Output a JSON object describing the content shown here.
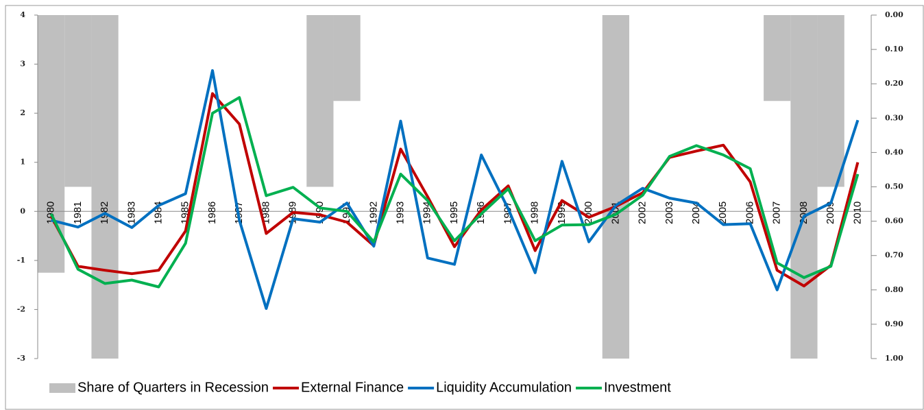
{
  "chart_data": {
    "type": "bar-line",
    "categories": [
      "1980",
      "1981",
      "1982",
      "1983",
      "1984",
      "1985",
      "1986",
      "1987",
      "1988",
      "1989",
      "1990",
      "1991",
      "1992",
      "1993",
      "1994",
      "1995",
      "1996",
      "1997",
      "1998",
      "1999",
      "2000",
      "2001",
      "2002",
      "2003",
      "2004",
      "2005",
      "2006",
      "2007",
      "2008",
      "2009",
      "2010"
    ],
    "series": [
      {
        "name": "Share of Quarters in Recession",
        "type": "bar",
        "axis": "y2",
        "color": "#bfbfbf",
        "values": [
          0.75,
          0.5,
          1.0,
          0,
          0,
          0,
          0,
          0,
          0,
          0,
          0.5,
          0.25,
          0,
          0,
          0,
          0,
          0,
          0,
          0,
          0,
          0,
          1.0,
          0,
          0,
          0,
          0,
          0,
          0.25,
          1.0,
          0.5,
          0
        ]
      },
      {
        "name": "External Finance",
        "type": "line",
        "color": "#c00000",
        "values": [
          -0.1,
          -1.12,
          -1.2,
          -1.27,
          -1.2,
          -0.4,
          2.4,
          1.78,
          -0.45,
          -0.02,
          -0.07,
          -0.22,
          -0.7,
          1.27,
          0.3,
          -0.72,
          0.03,
          0.52,
          -0.8,
          0.22,
          -0.12,
          0.1,
          0.38,
          1.1,
          1.23,
          1.35,
          0.6,
          -1.2,
          -1.52,
          -1.1,
          1.0
        ]
      },
      {
        "name": "Liquidity Accumulation",
        "type": "line",
        "color": "#0070c0",
        "values": [
          -0.18,
          -0.32,
          -0.04,
          -0.33,
          0.12,
          0.36,
          2.87,
          -0.18,
          -1.98,
          -0.15,
          -0.22,
          0.17,
          -0.71,
          1.84,
          -0.95,
          -1.08,
          1.15,
          0.05,
          -1.25,
          1.02,
          -0.62,
          0.12,
          0.47,
          0.27,
          0.17,
          -0.27,
          -0.25,
          -1.6,
          -0.1,
          0.17,
          1.86
        ]
      },
      {
        "name": "Investment",
        "type": "line",
        "color": "#00b050",
        "values": [
          -0.05,
          -1.18,
          -1.47,
          -1.4,
          -1.54,
          -0.65,
          2.0,
          2.32,
          0.32,
          0.49,
          0.07,
          0.0,
          -0.62,
          0.76,
          0.22,
          -0.6,
          -0.05,
          0.46,
          -0.6,
          -0.28,
          -0.27,
          -0.06,
          0.33,
          1.12,
          1.34,
          1.15,
          0.87,
          -1.05,
          -1.35,
          -1.12,
          0.76
        ]
      }
    ],
    "ylim": [
      -3,
      4
    ],
    "yticks": [
      -3,
      -2,
      -1,
      0,
      1,
      2,
      3,
      4
    ],
    "y2lim": [
      0,
      1
    ],
    "y2_inverted": true,
    "y2ticks": [
      {
        "value": 0,
        "label": "0.00"
      },
      {
        "value": 0.1,
        "label": "0.10"
      },
      {
        "value": 0.2,
        "label": "0.20"
      },
      {
        "value": 0.3,
        "label": "0.30"
      },
      {
        "value": 0.4,
        "label": "0.40"
      },
      {
        "value": 0.5,
        "label": "0.50"
      },
      {
        "value": 0.6,
        "label": "0.60"
      },
      {
        "value": 0.7,
        "label": "0.70"
      },
      {
        "value": 0.8,
        "label": "0.80"
      },
      {
        "value": 0.9,
        "label": "0.90"
      },
      {
        "value": 1,
        "label": "1.00"
      }
    ],
    "legend": "bottom"
  }
}
